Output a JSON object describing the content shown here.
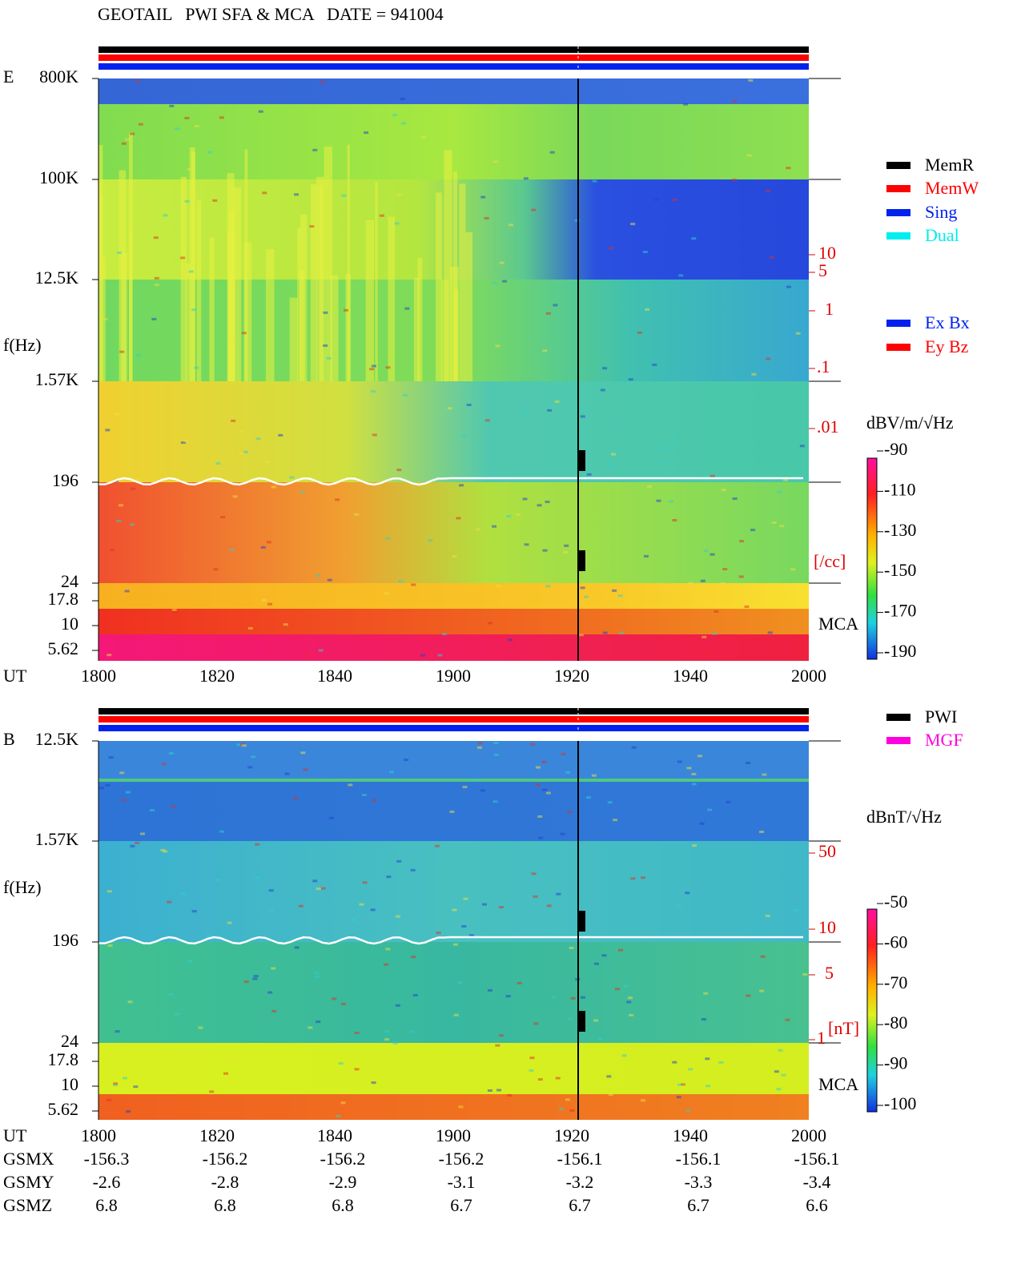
{
  "header": {
    "title": "GEOTAIL   PWI SFA & MCA   DATE = 941004"
  },
  "panels": [
    {
      "label": "E",
      "y_label": "f(Hz)",
      "y_ticks": [
        "800K",
        "100K",
        "12.5K",
        "1.57K",
        "196",
        "24",
        "17.8",
        "10",
        "5.62"
      ],
      "x_label": "UT",
      "x_ticks": [
        "1800",
        "1820",
        "1840",
        "1900",
        "1920",
        "1940",
        "2000"
      ],
      "right_labels": [
        "10",
        "5",
        "1",
        ".1",
        ".01",
        "[/cc]"
      ],
      "mca": "MCA",
      "colorbar": {
        "unit": "dBV/m/√Hz",
        "ticks": [
          -90,
          -110,
          -130,
          -150,
          -170,
          -190
        ]
      }
    },
    {
      "label": "B",
      "y_label": "f(Hz)",
      "y_ticks": [
        "12.5K",
        "1.57K",
        "196",
        "24",
        "17.8",
        "10",
        "5.62"
      ],
      "x_label": "UT",
      "x_ticks": [
        "1800",
        "1820",
        "1840",
        "1900",
        "1920",
        "1940",
        "2000"
      ],
      "right_labels": [
        "50",
        "10",
        "5",
        "1",
        "[nT]"
      ],
      "mca": "MCA",
      "colorbar": {
        "unit": "dBnT/√Hz",
        "ticks": [
          -50,
          -60,
          -70,
          -80,
          -90,
          -100
        ]
      }
    }
  ],
  "legends": {
    "mode": [
      {
        "name": "MemR",
        "color": "#000000"
      },
      {
        "name": "MemW",
        "color": "#ff0000"
      },
      {
        "name": "Sing",
        "color": "#0022ee"
      },
      {
        "name": "Dual",
        "color": "#00eeee"
      }
    ],
    "components": [
      {
        "name": "Ex Bx",
        "color": "#0022ee"
      },
      {
        "name": "Ey Bz",
        "color": "#ff0000"
      }
    ],
    "source": [
      {
        "name": "PWI",
        "color": "#000000"
      },
      {
        "name": "MGF",
        "color": "#ff00dd"
      }
    ]
  },
  "orbit": {
    "rows": [
      {
        "label": "GSMX",
        "values": [
          -156.3,
          -156.2,
          -156.2,
          -156.2,
          -156.1,
          -156.1,
          -156.1
        ]
      },
      {
        "label": "GSMY",
        "values": [
          -2.6,
          -2.8,
          -2.9,
          -3.1,
          -3.2,
          -3.3,
          -3.4
        ]
      },
      {
        "label": "GSMZ",
        "values": [
          6.8,
          6.8,
          6.8,
          6.7,
          6.7,
          6.7,
          6.6
        ]
      }
    ]
  }
}
